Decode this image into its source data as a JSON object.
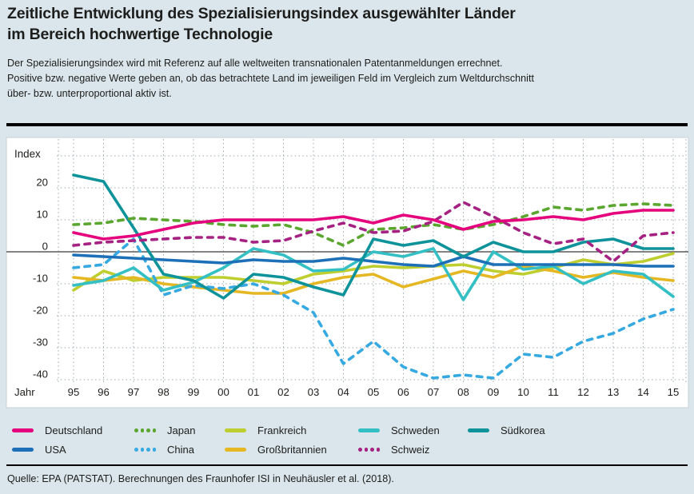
{
  "header": {
    "title_line1": "Zeitliche Entwicklung des Spezialisierungsindex ausgewählter Länder",
    "title_line2": "im Bereich hochwertige Technologie",
    "description_lines": [
      "Der Spezialisierungsindex wird mit Referenz auf alle weltweiten transnationalen Patentanmeldungen errechnet.",
      "Positive bzw. negative Werte geben an, ob das betrachtete Land im jeweiligen Feld im Vergleich zum Weltdurchschnitt",
      "über- bzw. unterproportional aktiv ist."
    ]
  },
  "chart_data": {
    "type": "line",
    "title": "Zeitliche Entwicklung des Spezialisierungsindex ausgewählter Länder im Bereich hochwertige Technologie",
    "ylabel": "Index",
    "xlabel": "Jahr",
    "grid": "dotted",
    "legend_position": "bottom",
    "ylim": [
      -45,
      30
    ],
    "yticks": [
      20,
      10,
      0,
      -10,
      -20,
      -30,
      -40
    ],
    "gridline_values": [
      30,
      20,
      10,
      -10,
      -20,
      -30,
      -40
    ],
    "categories": [
      "95",
      "96",
      "97",
      "98",
      "99",
      "00",
      "01",
      "02",
      "03",
      "04",
      "05",
      "06",
      "07",
      "08",
      "09",
      "10",
      "11",
      "12",
      "13",
      "14",
      "15"
    ],
    "series": [
      {
        "name": "Frankreich",
        "color": "#bfce2f",
        "style": "solid",
        "values": [
          -12,
          -6,
          -9,
          -8,
          -8,
          -8,
          -9,
          -10,
          -7,
          -6,
          -4.5,
          -5,
          -4.5,
          -4,
          -6,
          -7,
          -5,
          -2.5,
          -4,
          -3,
          -0.5
        ]
      },
      {
        "name": "Großbritannien",
        "color": "#e4b723",
        "style": "solid",
        "values": [
          -8,
          -9,
          -8,
          -10,
          -11,
          -12,
          -13,
          -13,
          -10,
          -8,
          -7,
          -11,
          -8.5,
          -6,
          -8,
          -4.5,
          -6,
          -8,
          -6.5,
          -8,
          -9
        ]
      },
      {
        "name": "China",
        "color": "#36a9e1",
        "style": "dashed",
        "values": [
          -5,
          -4,
          4,
          -13.5,
          -10.5,
          -11.5,
          -10,
          -13.5,
          -19,
          -35,
          -28,
          -36,
          -39.5,
          -38.5,
          -39.5,
          -32,
          -33,
          -28,
          -25.5,
          -21,
          -18
        ]
      },
      {
        "name": "Schweden",
        "color": "#33bfc3",
        "style": "solid",
        "values": [
          -10.5,
          -9,
          -5,
          -12,
          -9.5,
          -5,
          1,
          -1,
          -6,
          -5.5,
          0,
          -1.5,
          1,
          -15,
          0,
          -5.5,
          -4.5,
          -10,
          -6,
          -7,
          -14
        ]
      },
      {
        "name": "USA",
        "color": "#1d70b7",
        "style": "solid",
        "values": [
          -1,
          -1.5,
          -2,
          -2.5,
          -3,
          -3.5,
          -2.5,
          -3,
          -3,
          -2,
          -3,
          -4,
          -4.5,
          -1.5,
          -4,
          -4,
          -4,
          -4,
          -4,
          -4.5,
          -4.5
        ]
      },
      {
        "name": "Südkorea",
        "color": "#0f939b",
        "style": "solid",
        "values": [
          24,
          22,
          7.5,
          -7,
          -9,
          -14.5,
          -7,
          -8,
          -11,
          -13.5,
          4,
          2,
          3.5,
          -1.5,
          3,
          0,
          0,
          3,
          4,
          1,
          1
        ]
      },
      {
        "name": "Japan",
        "color": "#5aa62e",
        "style": "dashed",
        "values": [
          8.5,
          9,
          10.5,
          10,
          9.5,
          8.5,
          8,
          8.5,
          6,
          2,
          7,
          7.5,
          8.5,
          7,
          8.5,
          11,
          14,
          13,
          14.5,
          15,
          14.5
        ]
      },
      {
        "name": "Schweiz",
        "color": "#a62282",
        "style": "dashed",
        "values": [
          2,
          3,
          3.5,
          4,
          4.5,
          4.5,
          3,
          3.5,
          6.5,
          9,
          6,
          6.5,
          9.5,
          15.5,
          11,
          6,
          2.5,
          4,
          -3,
          5,
          6
        ]
      },
      {
        "name": "Deutschland",
        "color": "#e5007d",
        "style": "solid",
        "values": [
          6,
          4,
          5,
          7,
          9,
          10,
          10,
          10,
          10,
          11,
          9,
          11.5,
          10,
          7,
          9.5,
          10,
          11,
          10,
          12,
          13,
          13
        ]
      }
    ],
    "legend_rows": [
      [
        "Deutschland",
        "Japan",
        "Frankreich",
        "Schweden",
        "Südkorea"
      ],
      [
        "USA",
        "China",
        "Großbritannien",
        "Schweiz"
      ]
    ]
  },
  "footer": {
    "source": "Quelle: EPA (PATSTAT). Berechnungen des Fraunhofer ISI in Neuhäusler et al. (2018)."
  }
}
